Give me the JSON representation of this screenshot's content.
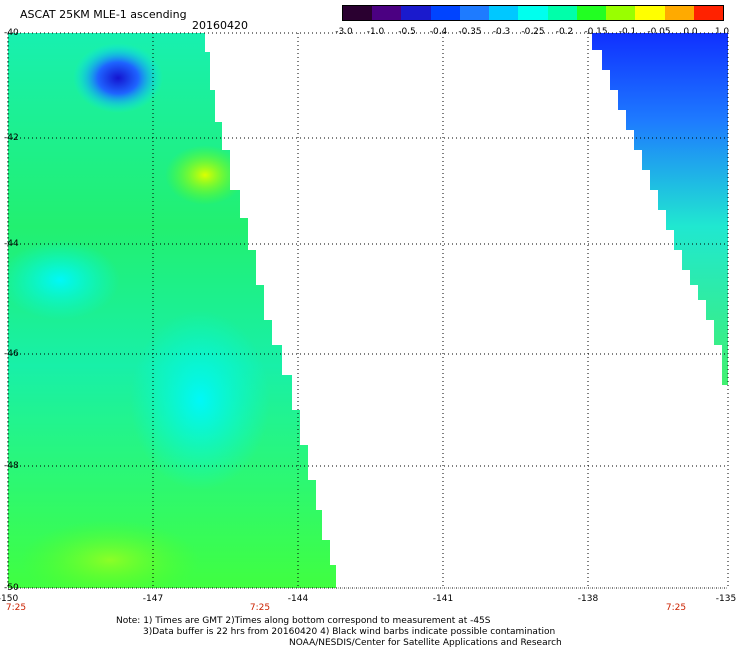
{
  "header": {
    "title": "ASCAT 25KM MLE-1 ascending",
    "date": "20160420"
  },
  "colorbar": {
    "ticks": [
      "-3.0",
      "-1.0",
      "-0.5",
      "-0.4",
      "-0.35",
      "-0.3",
      "-0.25",
      "-0.2",
      "-0.15",
      "-0.1",
      "-0.05",
      "0.0",
      "1.0"
    ],
    "colors": [
      "#2a0030",
      "#4b0082",
      "#1a1acd",
      "#0044ff",
      "#1e7bff",
      "#00c8ff",
      "#00ffee",
      "#00ffaa",
      "#22ff22",
      "#99ff00",
      "#ffff00",
      "#ffaa00",
      "#ff2200"
    ]
  },
  "axes": {
    "lat_labels": [
      "-40",
      "-42",
      "-44",
      "-46",
      "-48",
      "-50"
    ],
    "lon_labels": [
      "-150",
      "-147",
      "-144",
      "-141",
      "-138",
      "-135"
    ],
    "time_labels": [
      "7:25",
      "7:25",
      "7:25"
    ]
  },
  "notes": {
    "line1": "Note: 1) Times are GMT 2)Times along bottom correspond to measurement at -45S",
    "line2": "3)Data buffer is 22 hrs from 20160420 4) Black wind barbs indicate possible contamination",
    "line3": "NOAA/NESDIS/Center for Satellite Applications and Research"
  }
}
